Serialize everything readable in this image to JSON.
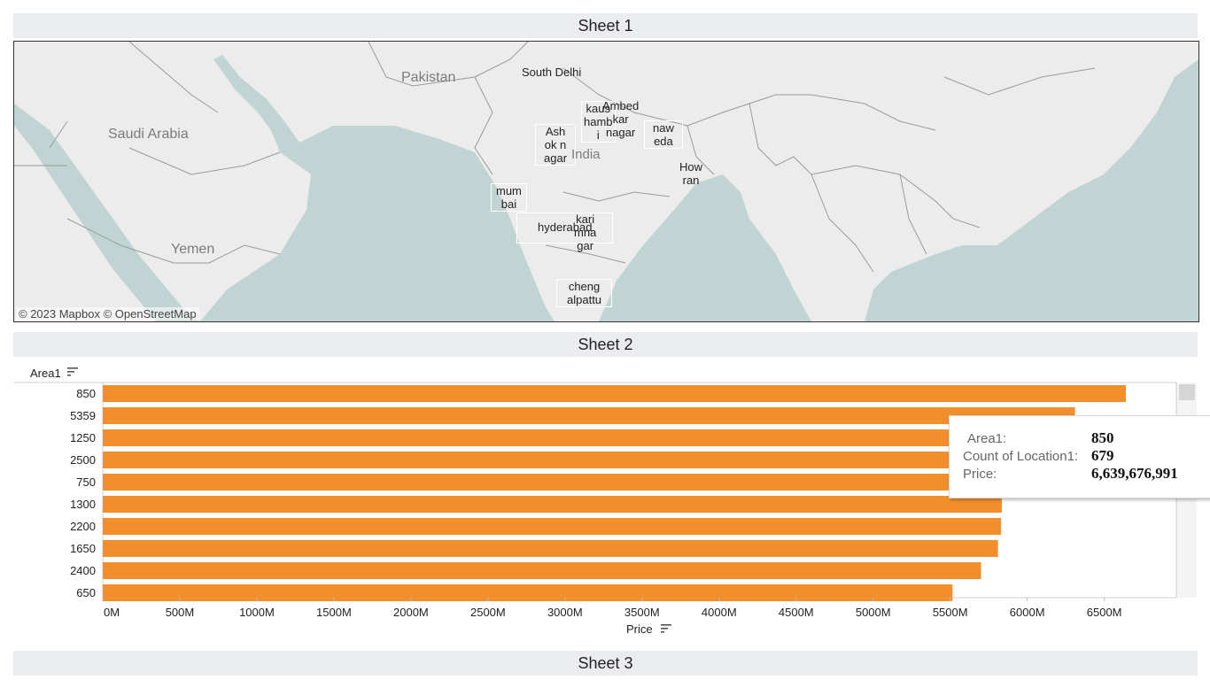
{
  "sheets": {
    "sheet1_title": "Sheet 1",
    "sheet2_title": "Sheet 2",
    "sheet3_title": "Sheet 3"
  },
  "map": {
    "attribution": "© 2023 Mapbox  © OpenStreetMap",
    "country_labels": [
      "Pakistan",
      "Saudi Arabia",
      "Yemen",
      "India"
    ],
    "city_labels": [
      "South Delhi",
      "kaus\nhamb\ni",
      "Ambed\nkar\nnagar",
      "Ash\nok n\nagar",
      "naw\neda",
      "How\nran",
      "mum\nbai",
      "hyderabad",
      "kari\nmna\ngar",
      "cheng\nalpattu"
    ],
    "colors": {
      "land": "#ececec",
      "water": "#c0d4d3",
      "border": "#9a9a9a"
    }
  },
  "chart_data": {
    "type": "bar",
    "orientation": "horizontal",
    "categories": [
      "850",
      "5359",
      "1250",
      "2500",
      "750",
      "1300",
      "2200",
      "1650",
      "2400",
      "650"
    ],
    "values": [
      6640,
      6310,
      6100,
      6000,
      5900,
      5835,
      5830,
      5810,
      5700,
      5515
    ],
    "value_unit": "M",
    "xlabel": "Price",
    "ylabel": "Area1",
    "xlim": [
      0,
      7000
    ],
    "ticks": [
      "0M",
      "500M",
      "1000M",
      "1500M",
      "2000M",
      "2500M",
      "3000M",
      "3500M",
      "4000M",
      "4500M",
      "5000M",
      "5500M",
      "6000M",
      "6500M"
    ],
    "tick_values": [
      0,
      500,
      1000,
      1500,
      2000,
      2500,
      3000,
      3500,
      4000,
      4500,
      5000,
      5500,
      6000,
      6500
    ],
    "bar_color": "#f28e2b",
    "grid": false
  },
  "tooltip": {
    "area_label": "Area1:",
    "area_value": "850",
    "count_label": "Count of Location1:",
    "count_value": "679",
    "price_label": "Price:",
    "price_value": "6,639,676,991"
  }
}
